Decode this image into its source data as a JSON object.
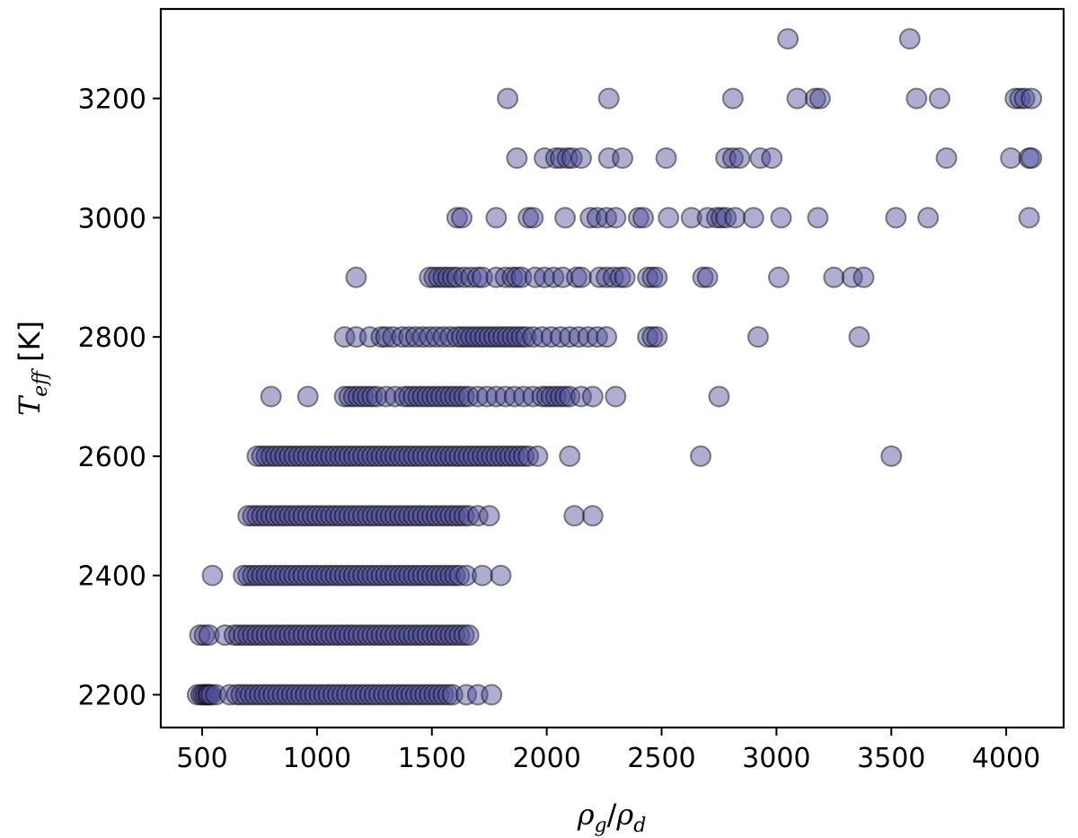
{
  "chart_data": {
    "type": "scatter",
    "title": "",
    "xlabel": {
      "main": "ρ",
      "sub1": "g",
      "slash": "/",
      "main2": "ρ",
      "sub2": "d"
    },
    "ylabel": {
      "main": "T",
      "sub": "eff",
      "unit": " [K]"
    },
    "xlim": [
      320,
      4250
    ],
    "ylim": [
      2145,
      3350
    ],
    "xticks": [
      500,
      1000,
      1500,
      2000,
      2500,
      3000,
      3500,
      4000
    ],
    "yticks": [
      2200,
      2400,
      2600,
      2800,
      3000,
      3200
    ],
    "grid": false,
    "legend": "none",
    "marker_color": "#4b4b9a",
    "marker_edge": "#000000",
    "marker_alpha": 0.45,
    "series": [
      {
        "y": 2200,
        "x": [
          480,
          495,
          505,
          515,
          525,
          530,
          540,
          560,
          620,
          650,
          670,
          690,
          710,
          730,
          750,
          770,
          790,
          810,
          830,
          850,
          870,
          890,
          910,
          930,
          950,
          970,
          990,
          1010,
          1030,
          1050,
          1070,
          1090,
          1110,
          1130,
          1150,
          1170,
          1190,
          1210,
          1230,
          1250,
          1270,
          1290,
          1310,
          1330,
          1350,
          1370,
          1390,
          1410,
          1430,
          1450,
          1470,
          1490,
          1510,
          1530,
          1550,
          1570,
          1590,
          1650,
          1700,
          1760
        ]
      },
      {
        "y": 2300,
        "x": [
          490,
          510,
          530,
          600,
          640,
          660,
          680,
          700,
          720,
          740,
          760,
          780,
          800,
          820,
          840,
          860,
          880,
          900,
          920,
          940,
          960,
          980,
          1000,
          1020,
          1040,
          1060,
          1080,
          1100,
          1120,
          1140,
          1160,
          1180,
          1200,
          1220,
          1240,
          1260,
          1280,
          1300,
          1320,
          1340,
          1360,
          1380,
          1400,
          1420,
          1440,
          1460,
          1480,
          1500,
          1520,
          1540,
          1560,
          1580,
          1600,
          1620,
          1640,
          1660
        ]
      },
      {
        "y": 2400,
        "x": [
          545,
          680,
          700,
          720,
          740,
          760,
          780,
          800,
          820,
          840,
          860,
          880,
          900,
          920,
          940,
          960,
          980,
          1000,
          1020,
          1040,
          1060,
          1080,
          1100,
          1120,
          1140,
          1160,
          1180,
          1200,
          1220,
          1240,
          1260,
          1280,
          1300,
          1320,
          1340,
          1360,
          1380,
          1400,
          1420,
          1440,
          1460,
          1480,
          1500,
          1520,
          1540,
          1560,
          1580,
          1600,
          1620,
          1650,
          1720,
          1800
        ]
      },
      {
        "y": 2500,
        "x": [
          700,
          720,
          740,
          760,
          780,
          800,
          820,
          840,
          860,
          880,
          900,
          920,
          940,
          960,
          980,
          1000,
          1020,
          1040,
          1060,
          1080,
          1100,
          1120,
          1140,
          1160,
          1180,
          1200,
          1220,
          1240,
          1260,
          1280,
          1300,
          1320,
          1340,
          1360,
          1380,
          1400,
          1420,
          1440,
          1460,
          1480,
          1500,
          1520,
          1540,
          1560,
          1580,
          1600,
          1620,
          1640,
          1660,
          1700,
          1750,
          2120,
          2200
        ]
      },
      {
        "y": 2600,
        "x": [
          740,
          760,
          780,
          800,
          820,
          840,
          860,
          880,
          900,
          920,
          940,
          960,
          980,
          1000,
          1020,
          1040,
          1060,
          1080,
          1100,
          1120,
          1140,
          1160,
          1180,
          1200,
          1220,
          1240,
          1260,
          1280,
          1300,
          1320,
          1340,
          1360,
          1380,
          1400,
          1420,
          1440,
          1460,
          1480,
          1500,
          1520,
          1540,
          1560,
          1580,
          1600,
          1620,
          1640,
          1660,
          1680,
          1700,
          1720,
          1740,
          1760,
          1780,
          1800,
          1820,
          1840,
          1860,
          1880,
          1900,
          1920,
          1960,
          2100,
          2670,
          3500
        ]
      },
      {
        "y": 2700,
        "x": [
          800,
          960,
          1120,
          1140,
          1160,
          1180,
          1200,
          1220,
          1240,
          1260,
          1300,
          1340,
          1380,
          1400,
          1420,
          1440,
          1460,
          1480,
          1500,
          1520,
          1540,
          1560,
          1580,
          1600,
          1620,
          1640,
          1660,
          1700,
          1740,
          1780,
          1820,
          1860,
          1900,
          1940,
          1980,
          2000,
          2020,
          2040,
          2060,
          2080,
          2100,
          2150,
          2200,
          2300,
          2750
        ]
      },
      {
        "y": 2800,
        "x": [
          1120,
          1170,
          1230,
          1280,
          1300,
          1330,
          1370,
          1400,
          1430,
          1460,
          1490,
          1520,
          1550,
          1580,
          1610,
          1630,
          1650,
          1670,
          1690,
          1710,
          1730,
          1750,
          1770,
          1790,
          1810,
          1830,
          1850,
          1870,
          1890,
          1910,
          1940,
          1980,
          2020,
          2060,
          2100,
          2140,
          2180,
          2220,
          2260,
          2440,
          2460,
          2480,
          2920,
          3360
        ]
      },
      {
        "y": 2900,
        "x": [
          1170,
          1490,
          1510,
          1530,
          1550,
          1570,
          1590,
          1610,
          1640,
          1670,
          1700,
          1720,
          1780,
          1820,
          1850,
          1870,
          1890,
          1950,
          1990,
          2030,
          2070,
          2130,
          2150,
          2230,
          2260,
          2290,
          2320,
          2340,
          2440,
          2460,
          2480,
          2680,
          2700,
          3010,
          3250,
          3330,
          3380
        ]
      },
      {
        "y": 3000,
        "x": [
          1610,
          1630,
          1780,
          1920,
          1940,
          2080,
          2190,
          2220,
          2260,
          2300,
          2400,
          2420,
          2530,
          2630,
          2700,
          2740,
          2760,
          2780,
          2820,
          2900,
          3020,
          3180,
          3520,
          3660,
          4100
        ]
      },
      {
        "y": 3100,
        "x": [
          1870,
          1990,
          2040,
          2060,
          2090,
          2110,
          2150,
          2270,
          2330,
          2520,
          2780,
          2810,
          2840,
          2930,
          2980,
          3740,
          4020,
          4100,
          4110
        ]
      },
      {
        "y": 3200,
        "x": [
          1830,
          2270,
          2810,
          3090,
          3170,
          3190,
          3610,
          3710,
          4040,
          4060,
          4080,
          4110
        ]
      },
      {
        "y": 3300,
        "x": [
          3050,
          3580
        ]
      }
    ]
  }
}
